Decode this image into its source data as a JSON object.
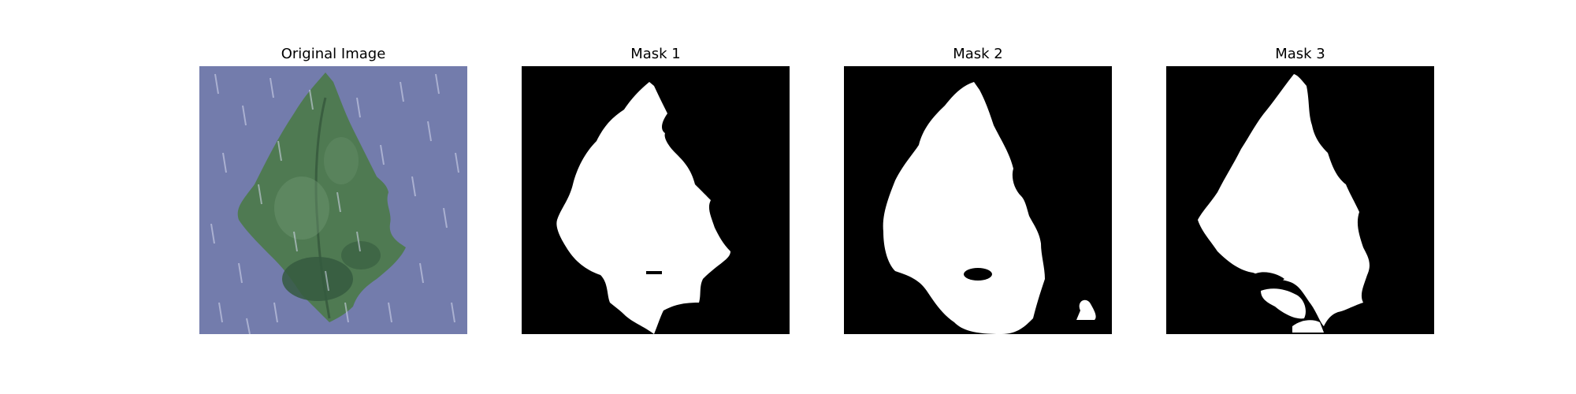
{
  "figure": {
    "panels": [
      {
        "title": "Original Image",
        "kind": "photo"
      },
      {
        "title": "Mask 1",
        "kind": "mask"
      },
      {
        "title": "Mask 2",
        "kind": "mask"
      },
      {
        "title": "Mask 3",
        "kind": "mask"
      }
    ]
  },
  "colors": {
    "mask_background": "#000000",
    "mask_foreground": "#ffffff",
    "photo_background": "#6f78a8",
    "leaf_dark": "#355a3f",
    "leaf_mid": "#4f7a52",
    "leaf_light": "#6e9670",
    "rain_streak": "#d8dcf0"
  }
}
